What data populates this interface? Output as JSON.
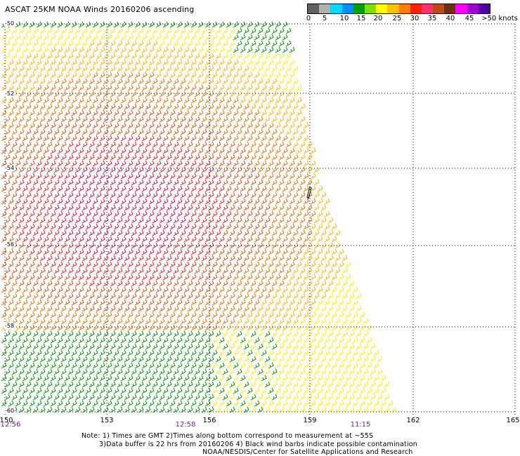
{
  "title": "ASCAT 25KM NOAA Winds 20160206 ascending",
  "legend": {
    "colors": [
      "#606060",
      "#b0b0b0",
      "#00d8ff",
      "#0090ff",
      "#00a000",
      "#80e000",
      "#ffff00",
      "#ffc000",
      "#ff8000",
      "#ff2000",
      "#ff3070",
      "#ba4a18",
      "#6a3010",
      "#ff00ff",
      "#a000d0",
      "#5000a0"
    ],
    "labels": [
      "0",
      "5",
      "10",
      "15",
      "20",
      "25",
      "30",
      "35",
      "40",
      "45",
      ">50 knots"
    ]
  },
  "latitude_labels": [
    "-50",
    "-52",
    "-54",
    "-56",
    "-58",
    "-60"
  ],
  "longitude_labels": [
    "150",
    "153",
    "156",
    "159",
    "162",
    "165"
  ],
  "time_labels": [
    "12:56",
    "12:58",
    "11:15"
  ],
  "notes": {
    "line1": "Note: 1) Times are GMT 2)Times along bottom correspond to measurement at ~55S",
    "line2": "3)Data buffer is 22 hrs from 20160206 4) Black wind barbs indicate possible contamination",
    "line3": "NOAA/NESDIS/Center for Satellite Applications and Research"
  },
  "wind_colors": {
    "green": "#009000",
    "yellow": "#ffe800",
    "gold": "#ffb000",
    "orange": "#e07000",
    "dark_orange": "#d05010",
    "red": "#e02020",
    "crimson": "#d01040"
  }
}
